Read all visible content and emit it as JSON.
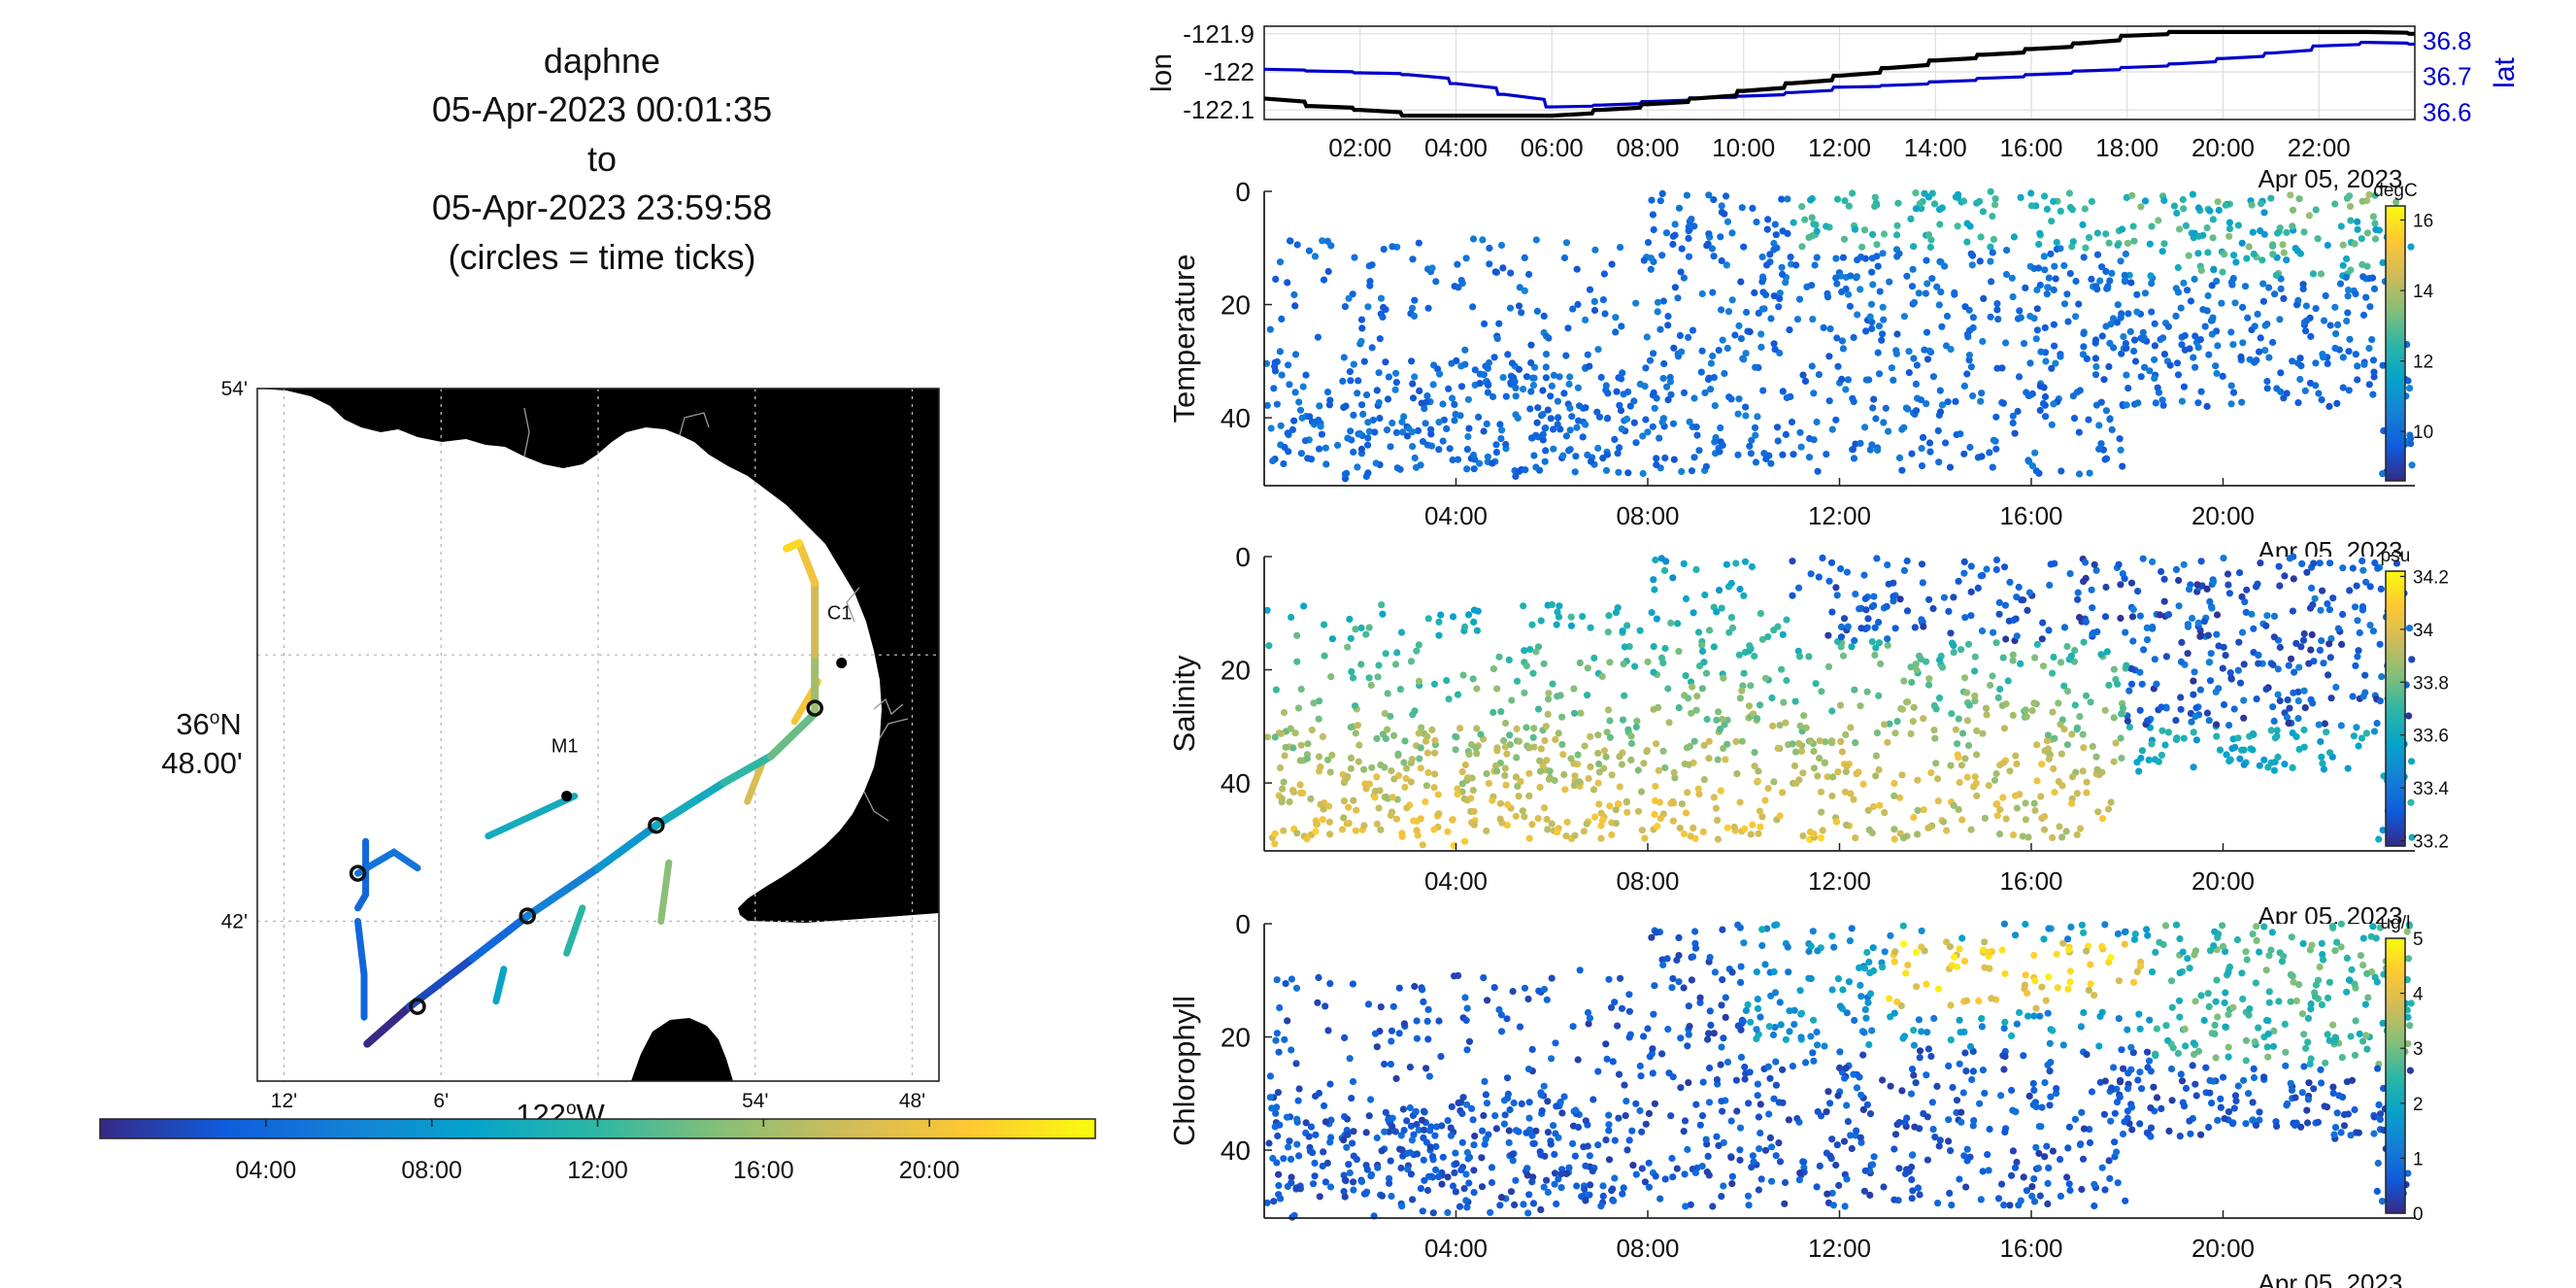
{
  "header": {
    "vehicle": "daphne",
    "start": "05-Apr-2023 00:01:35",
    "to": "to",
    "end": "05-Apr-2023 23:59:58",
    "note": "(circles = time ticks)"
  },
  "colors": {
    "track_lon": "#000000",
    "track_lat": "#0000cc",
    "land": "#e6e6e6",
    "grid": "#bbbbbb",
    "parula": [
      "#352a87",
      "#0f5cdd",
      "#1481d6",
      "#06a4ca",
      "#2eb7a4",
      "#87bf77",
      "#d1bb59",
      "#fec832",
      "#f9fb0e"
    ]
  },
  "chart_data": [
    {
      "id": "map",
      "type": "line",
      "ylabel_deg": "36",
      "ylabel_deg_sign": "o",
      "ylabel_hemi": "N",
      "ylabel_min": "48.00'",
      "xlabel_deg": "122",
      "xlabel_deg_sign": "o",
      "xlabel_hemi": "W",
      "x_ticks": [
        "12'",
        "6'",
        "54'",
        "48'"
      ],
      "y_ticks": [
        "54'",
        "42'"
      ],
      "stations": [
        {
          "name": "M1",
          "lon": -122.02,
          "lat": 36.747
        },
        {
          "name": "C1",
          "lon": -121.845,
          "lat": 36.797
        }
      ],
      "track": [
        [
          -122.147,
          36.654
        ],
        [
          -122.12,
          36.668
        ],
        [
          -122.08,
          36.686
        ],
        [
          -122.045,
          36.702
        ],
        [
          -122.0,
          36.72
        ],
        [
          -121.963,
          36.736
        ],
        [
          -121.92,
          36.752
        ],
        [
          -121.89,
          36.762
        ],
        [
          -121.862,
          36.778
        ],
        [
          -121.862,
          36.8
        ],
        [
          -121.862,
          36.827
        ],
        [
          -121.872,
          36.842
        ],
        [
          -121.88,
          36.84
        ]
      ],
      "segments": [
        [
          [
            -122.148,
            36.73
          ],
          [
            -122.148,
            36.71
          ],
          [
            -122.153,
            36.705
          ]
        ],
        [
          [
            -122.153,
            36.7
          ],
          [
            -122.149,
            36.68
          ],
          [
            -122.149,
            36.664
          ]
        ],
        [
          [
            -122.115,
            36.72
          ],
          [
            -122.13,
            36.726
          ],
          [
            -122.153,
            36.718
          ]
        ],
        [
          [
            -122.015,
            36.747
          ],
          [
            -122.07,
            36.732
          ]
        ],
        [
          [
            -122.06,
            36.682
          ],
          [
            -122.065,
            36.67
          ]
        ],
        [
          [
            -122.01,
            36.705
          ],
          [
            -122.02,
            36.688
          ]
        ],
        [
          [
            -121.955,
            36.722
          ],
          [
            -121.96,
            36.7
          ]
        ],
        [
          [
            -121.895,
            36.76
          ],
          [
            -121.905,
            36.745
          ]
        ],
        [
          [
            -121.86,
            36.79
          ],
          [
            -121.875,
            36.775
          ]
        ]
      ],
      "time_ticks": [
        {
          "lon": -122.153,
          "lat": 36.718
        },
        {
          "lon": -122.115,
          "lat": 36.668
        },
        {
          "lon": -122.045,
          "lat": 36.702
        },
        {
          "lon": -121.963,
          "lat": 36.736
        },
        {
          "lon": -121.862,
          "lat": 36.78
        }
      ]
    },
    {
      "id": "time-colorbar",
      "type": "heatmap",
      "tick_labels": [
        "04:00",
        "08:00",
        "12:00",
        "16:00",
        "20:00"
      ],
      "range_hours": [
        0,
        24
      ]
    },
    {
      "id": "lonlat",
      "type": "line",
      "ylabel_left": "lon",
      "ylabel_right": "lat",
      "left_ticks": [
        "-121.9",
        "-122",
        "-122.1"
      ],
      "right_ticks": [
        "36.8",
        "36.7",
        "36.6"
      ],
      "x_ticks": [
        "02:00",
        "04:00",
        "06:00",
        "08:00",
        "10:00",
        "12:00",
        "14:00",
        "16:00",
        "18:00",
        "20:00",
        "22:00"
      ],
      "date_label": "Apr 05, 2023",
      "lon_ylim": [
        -122.125,
        -121.88
      ],
      "lat_ylim": [
        36.58,
        36.84
      ],
      "series": [
        {
          "values_hours": [
            0,
            1,
            2,
            3,
            4,
            5,
            6,
            7,
            8,
            9,
            10,
            11,
            12,
            13,
            14,
            15,
            16,
            17,
            18,
            19,
            20,
            21,
            22,
            23,
            24
          ],
          "lon": [
            -122.07,
            -122.09,
            -122.1,
            -122.115,
            -122.115,
            -122.115,
            -122.115,
            -122.1,
            -122.085,
            -122.07,
            -122.05,
            -122.03,
            -122.01,
            -121.99,
            -121.97,
            -121.955,
            -121.94,
            -121.925,
            -121.905,
            -121.895,
            -121.895,
            -121.895,
            -121.895,
            -121.895,
            -121.9
          ],
          "lat": [
            36.72,
            36.715,
            36.71,
            36.705,
            36.68,
            36.65,
            36.615,
            36.62,
            36.63,
            36.64,
            36.645,
            36.655,
            36.67,
            36.675,
            36.685,
            36.695,
            36.705,
            36.715,
            36.725,
            36.735,
            36.75,
            36.765,
            36.785,
            36.795,
            36.79
          ]
        }
      ]
    },
    {
      "id": "temperature",
      "type": "scatter",
      "ylabel": "Temperature",
      "y_ticks": [
        "0",
        "20",
        "40"
      ],
      "x_ticks": [
        "04:00",
        "08:00",
        "12:00",
        "16:00",
        "20:00"
      ],
      "date_label": "Apr 05, 2023",
      "unit": "degC",
      "cbar_ticks": [
        "16",
        "14",
        "12",
        "10"
      ],
      "clim": [
        8.6,
        16.4
      ],
      "ylim": [
        0,
        52
      ]
    },
    {
      "id": "salinity",
      "type": "scatter",
      "ylabel": "Salinity",
      "y_ticks": [
        "0",
        "20",
        "40"
      ],
      "x_ticks": [
        "04:00",
        "08:00",
        "12:00",
        "16:00",
        "20:00"
      ],
      "date_label": "Apr 05, 2023",
      "unit": "psu",
      "cbar_ticks": [
        "34.2",
        "34",
        "33.8",
        "33.6",
        "33.4",
        "33.2"
      ],
      "clim": [
        33.18,
        34.22
      ],
      "ylim": [
        0,
        52
      ]
    },
    {
      "id": "chlorophyll",
      "type": "scatter",
      "ylabel": "Chlorophyll",
      "y_ticks": [
        "0",
        "20",
        "40"
      ],
      "x_ticks": [
        "04:00",
        "08:00",
        "12:00",
        "16:00",
        "20:00"
      ],
      "date_label": "Apr 05, 2023",
      "unit": "ug/l",
      "cbar_ticks": [
        "5",
        "4",
        "3",
        "2",
        "1",
        "0"
      ],
      "clim": [
        0,
        5
      ],
      "ylim": [
        0,
        52
      ]
    }
  ]
}
